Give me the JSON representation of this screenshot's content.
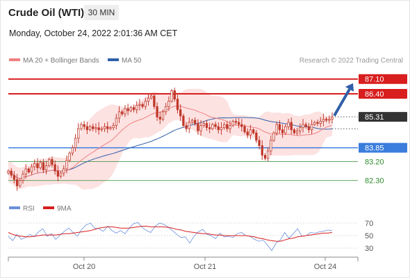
{
  "header": {
    "title": "Crude Oil (WTI)",
    "timeframe": "30 MIN",
    "datetime": "Monday, October 24, 2022 2:01:36 AM CET"
  },
  "legend": {
    "ma20_label": "MA 20 + Bollinger Bands",
    "ma50_label": "MA 50",
    "credit": "Research © 2022 Trading Central",
    "rsi_label": "RSI",
    "rsi_ma_label": "9MA"
  },
  "colors": {
    "candle": "#c0392b",
    "ma20": "#f08080",
    "ma50": "#2f5fa8",
    "bollinger_fill": "#fde2e2",
    "resistance": "#d81e1e",
    "support_blue": "#3b7ddd",
    "support_green": "#2e8b2e",
    "current_price_bg": "#333333",
    "rsi_line": "#6a8fdb",
    "rsi_ma_line": "#d81e1e"
  },
  "chart_data": [
    {
      "type": "candlestick",
      "x_ticks": [
        "Oct 20",
        "Oct 21",
        "Oct 24"
      ],
      "ylim": [
        81.7,
        87.55
      ],
      "levels": [
        {
          "value": 87.1,
          "label": "87.10",
          "kind": "resistance"
        },
        {
          "value": 86.4,
          "label": "86.40",
          "kind": "resistance"
        },
        {
          "value": 85.31,
          "label": "85.31",
          "kind": "current"
        },
        {
          "value": 83.85,
          "label": "83.85",
          "kind": "support-strong"
        },
        {
          "value": 83.2,
          "label": "83.20",
          "kind": "support"
        },
        {
          "value": 82.3,
          "label": "82.30",
          "kind": "support"
        }
      ],
      "forecast_target": 87.1,
      "close": [
        82.75,
        82.55,
        82.35,
        82.05,
        82.3,
        82.6,
        82.85,
        82.7,
        82.95,
        83.1,
        82.9,
        83.15,
        82.8,
        83.0,
        83.3,
        83.05,
        82.75,
        82.5,
        82.65,
        82.85,
        83.25,
        83.6,
        83.85,
        84.3,
        84.75,
        84.95,
        84.85,
        84.7,
        84.85,
        84.75,
        84.8,
        84.7,
        84.75,
        84.85,
        84.75,
        84.8,
        84.9,
        85.25,
        85.55,
        85.45,
        85.7,
        85.6,
        85.75,
        85.65,
        85.85,
        85.9,
        85.8,
        86.05,
        86.2,
        86.3,
        85.8,
        85.3,
        85.2,
        85.55,
        85.8,
        86.05,
        86.55,
        86.15,
        85.65,
        85.35,
        84.9,
        84.75,
        85.05,
        85.15,
        85.0,
        84.65,
        84.9,
        85.0,
        84.8,
        84.75,
        84.95,
        84.85,
        84.7,
        84.8,
        84.95,
        84.75,
        84.9,
        85.1,
        85.05,
        84.95,
        84.85,
        84.6,
        84.45,
        84.7,
        84.55,
        84.2,
        83.95,
        83.5,
        83.35,
        83.7,
        84.2,
        84.55,
        84.95,
        84.7,
        84.55,
        84.85,
        85.05,
        84.7,
        84.55,
        84.65,
        84.8,
        84.95,
        84.85,
        84.7,
        84.95,
        85.05,
        85.0,
        85.1,
        85.2,
        85.15,
        85.2,
        85.3
      ]
    },
    {
      "type": "line",
      "title": "RSI",
      "y_ticks": [
        70,
        50,
        30
      ],
      "ylim": [
        20,
        80
      ],
      "series": [
        {
          "name": "RSI",
          "values": [
            49,
            42,
            52,
            44,
            47,
            52,
            48,
            56,
            61,
            49,
            53,
            44,
            51,
            57,
            62,
            55,
            49,
            60,
            67,
            70,
            62,
            61,
            57,
            65,
            58,
            54,
            58,
            53,
            62,
            69,
            71,
            63,
            58,
            55,
            65,
            70,
            68,
            64,
            58,
            52,
            47,
            48,
            38,
            49,
            56,
            60,
            52,
            50,
            45,
            54,
            48,
            49,
            47,
            53,
            55,
            50,
            49,
            44,
            41,
            43,
            35,
            26,
            38,
            43,
            55,
            46,
            53,
            61,
            49,
            50,
            55,
            54,
            56,
            57,
            59,
            58
          ]
        },
        {
          "name": "9MA",
          "values": [
            55,
            52,
            50,
            49,
            48,
            48,
            49,
            50,
            51,
            51,
            51,
            51,
            52,
            53,
            53,
            54,
            55,
            56,
            57,
            58,
            60,
            62,
            63,
            64,
            64,
            63,
            62,
            62,
            62,
            63,
            64,
            65,
            65,
            64,
            64,
            64,
            64,
            63,
            62,
            60,
            59,
            57,
            56,
            55,
            54,
            53,
            53,
            52,
            51,
            51,
            50,
            50,
            50,
            50,
            50,
            50,
            49,
            48,
            46,
            45,
            43,
            42,
            41,
            41,
            43,
            45,
            46,
            48,
            49,
            50,
            51,
            52,
            53,
            54,
            54,
            55
          ]
        }
      ]
    }
  ]
}
